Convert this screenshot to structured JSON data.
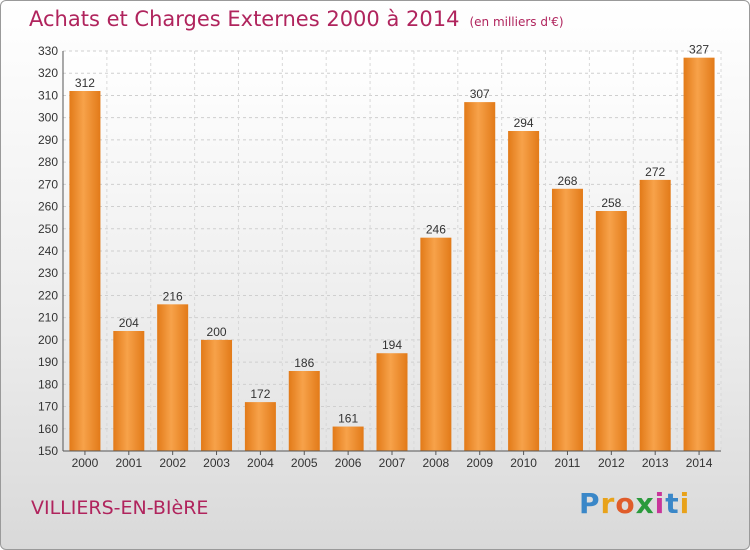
{
  "header": {
    "title": "Achats et Charges Externes 2000 à 2014",
    "subtitle": "(en milliers d'€)"
  },
  "footer": {
    "commune": "VILLIERS-EN-BIèRE",
    "logo_letters": [
      "P",
      "r",
      "o",
      "x",
      "i",
      "t",
      "i"
    ]
  },
  "chart_data": {
    "type": "bar",
    "title": "Achats et Charges Externes 2000 à 2014",
    "subtitle": "(en milliers d'€)",
    "xlabel": "",
    "ylabel": "",
    "categories": [
      "2000",
      "2001",
      "2002",
      "2003",
      "2004",
      "2005",
      "2006",
      "2007",
      "2008",
      "2009",
      "2010",
      "2011",
      "2012",
      "2013",
      "2014"
    ],
    "values": [
      312,
      204,
      216,
      200,
      172,
      186,
      161,
      194,
      246,
      307,
      294,
      268,
      258,
      272,
      327
    ],
    "ylim": [
      150,
      330
    ],
    "yticks": [
      150,
      160,
      170,
      180,
      190,
      200,
      210,
      220,
      230,
      240,
      250,
      260,
      270,
      280,
      290,
      300,
      310,
      320,
      330
    ],
    "grid": true,
    "bar_color": "#f0902e",
    "title_color": "#b0245d"
  }
}
